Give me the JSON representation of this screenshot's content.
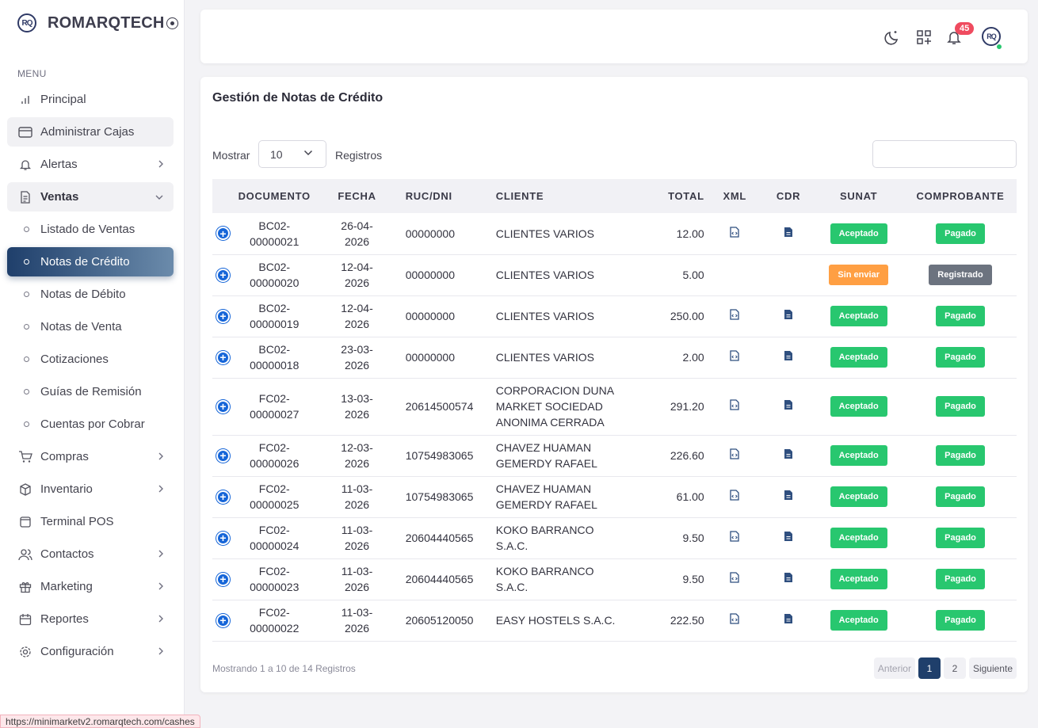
{
  "brand": {
    "logo": "RQ",
    "name": "ROMARQTECH"
  },
  "sidebar": {
    "menu_label": "MENU",
    "items": [
      {
        "label": "Principal",
        "icon": "bar-chart-icon"
      },
      {
        "label": "Administrar Cajas",
        "icon": "credit-card-icon"
      },
      {
        "label": "Alertas",
        "icon": "bell-icon"
      },
      {
        "label": "Ventas",
        "icon": "document-icon"
      },
      {
        "label": "Listado de Ventas"
      },
      {
        "label": "Notas de Crédito"
      },
      {
        "label": "Notas de Débito"
      },
      {
        "label": "Notas de Venta"
      },
      {
        "label": "Cotizaciones"
      },
      {
        "label": "Guías de Remisión"
      },
      {
        "label": "Cuentas por Cobrar"
      },
      {
        "label": "Compras",
        "icon": "cart-icon"
      },
      {
        "label": "Inventario",
        "icon": "box-icon"
      },
      {
        "label": "Terminal POS",
        "icon": "pos-icon"
      },
      {
        "label": "Contactos",
        "icon": "users-icon"
      },
      {
        "label": "Marketing",
        "icon": "gift-icon"
      },
      {
        "label": "Reportes",
        "icon": "calendar-icon"
      },
      {
        "label": "Configuración",
        "icon": "gear-icon"
      }
    ]
  },
  "topbar": {
    "notification_count": "45",
    "avatar": "RQ"
  },
  "main": {
    "title": "Gestión de Notas de Crédito",
    "show_label": "Mostrar",
    "page_size": "10",
    "records_label": "Registros",
    "search_placeholder": "",
    "columns": [
      "DOCUMENTO",
      "FECHA",
      "RUC/DNI",
      "CLIENTE",
      "TOTAL",
      "XML",
      "CDR",
      "SUNAT",
      "COMPROBANTE"
    ],
    "rows": [
      {
        "doc1": "BC02-",
        "doc2": "00000021",
        "date1": "26-04-",
        "date2": "2026",
        "ruc": "00000000",
        "client": "CLIENTES VARIOS",
        "total": "12.00",
        "xml": true,
        "cdr": true,
        "sunat": "Aceptado",
        "comprobante": "Pagado"
      },
      {
        "doc1": "BC02-",
        "doc2": "00000020",
        "date1": "12-04-",
        "date2": "2026",
        "ruc": "00000000",
        "client": "CLIENTES VARIOS",
        "total": "5.00",
        "xml": false,
        "cdr": false,
        "sunat": "Sin enviar",
        "comprobante": "Registrado"
      },
      {
        "doc1": "BC02-",
        "doc2": "00000019",
        "date1": "12-04-",
        "date2": "2026",
        "ruc": "00000000",
        "client": "CLIENTES VARIOS",
        "total": "250.00",
        "xml": true,
        "cdr": true,
        "sunat": "Aceptado",
        "comprobante": "Pagado"
      },
      {
        "doc1": "BC02-",
        "doc2": "00000018",
        "date1": "23-03-",
        "date2": "2026",
        "ruc": "00000000",
        "client": "CLIENTES VARIOS",
        "total": "2.00",
        "xml": true,
        "cdr": true,
        "sunat": "Aceptado",
        "comprobante": "Pagado"
      },
      {
        "doc1": "FC02-",
        "doc2": "00000027",
        "date1": "13-03-",
        "date2": "2026",
        "ruc": "20614500574",
        "client": "CORPORACION DUNA MARKET SOCIEDAD ANONIMA CERRADA",
        "total": "291.20",
        "xml": true,
        "cdr": true,
        "sunat": "Aceptado",
        "comprobante": "Pagado"
      },
      {
        "doc1": "FC02-",
        "doc2": "00000026",
        "date1": "12-03-",
        "date2": "2026",
        "ruc": "10754983065",
        "client": "CHAVEZ HUAMAN GEMERDY RAFAEL",
        "total": "226.60",
        "xml": true,
        "cdr": true,
        "sunat": "Aceptado",
        "comprobante": "Pagado"
      },
      {
        "doc1": "FC02-",
        "doc2": "00000025",
        "date1": "11-03-",
        "date2": "2026",
        "ruc": "10754983065",
        "client": "CHAVEZ HUAMAN GEMERDY RAFAEL",
        "total": "61.00",
        "xml": true,
        "cdr": true,
        "sunat": "Aceptado",
        "comprobante": "Pagado"
      },
      {
        "doc1": "FC02-",
        "doc2": "00000024",
        "date1": "11-03-",
        "date2": "2026",
        "ruc": "20604440565",
        "client": "KOKO BARRANCO S.A.C.",
        "total": "9.50",
        "xml": true,
        "cdr": true,
        "sunat": "Aceptado",
        "comprobante": "Pagado"
      },
      {
        "doc1": "FC02-",
        "doc2": "00000023",
        "date1": "11-03-",
        "date2": "2026",
        "ruc": "20604440565",
        "client": "KOKO BARRANCO S.A.C.",
        "total": "9.50",
        "xml": true,
        "cdr": true,
        "sunat": "Aceptado",
        "comprobante": "Pagado"
      },
      {
        "doc1": "FC02-",
        "doc2": "00000022",
        "date1": "11-03-",
        "date2": "2026",
        "ruc": "20605120050",
        "client": "EASY HOSTELS S.A.C.",
        "total": "222.50",
        "xml": true,
        "cdr": true,
        "sunat": "Aceptado",
        "comprobante": "Pagado"
      }
    ],
    "footer_info": "Mostrando 1 a 10 de 14 Registros",
    "pagination": {
      "prev": "Anterior",
      "pages": [
        "1",
        "2"
      ],
      "current": "1",
      "next": "Siguiente"
    }
  },
  "status_url": "https://minimarketv2.romarqtech.com/cashes",
  "colors": {
    "accent": "#1f3f6b",
    "success": "#28c76f",
    "warning": "#ff9f43",
    "neutral": "#6c737f",
    "danger": "#ef4b5f"
  }
}
